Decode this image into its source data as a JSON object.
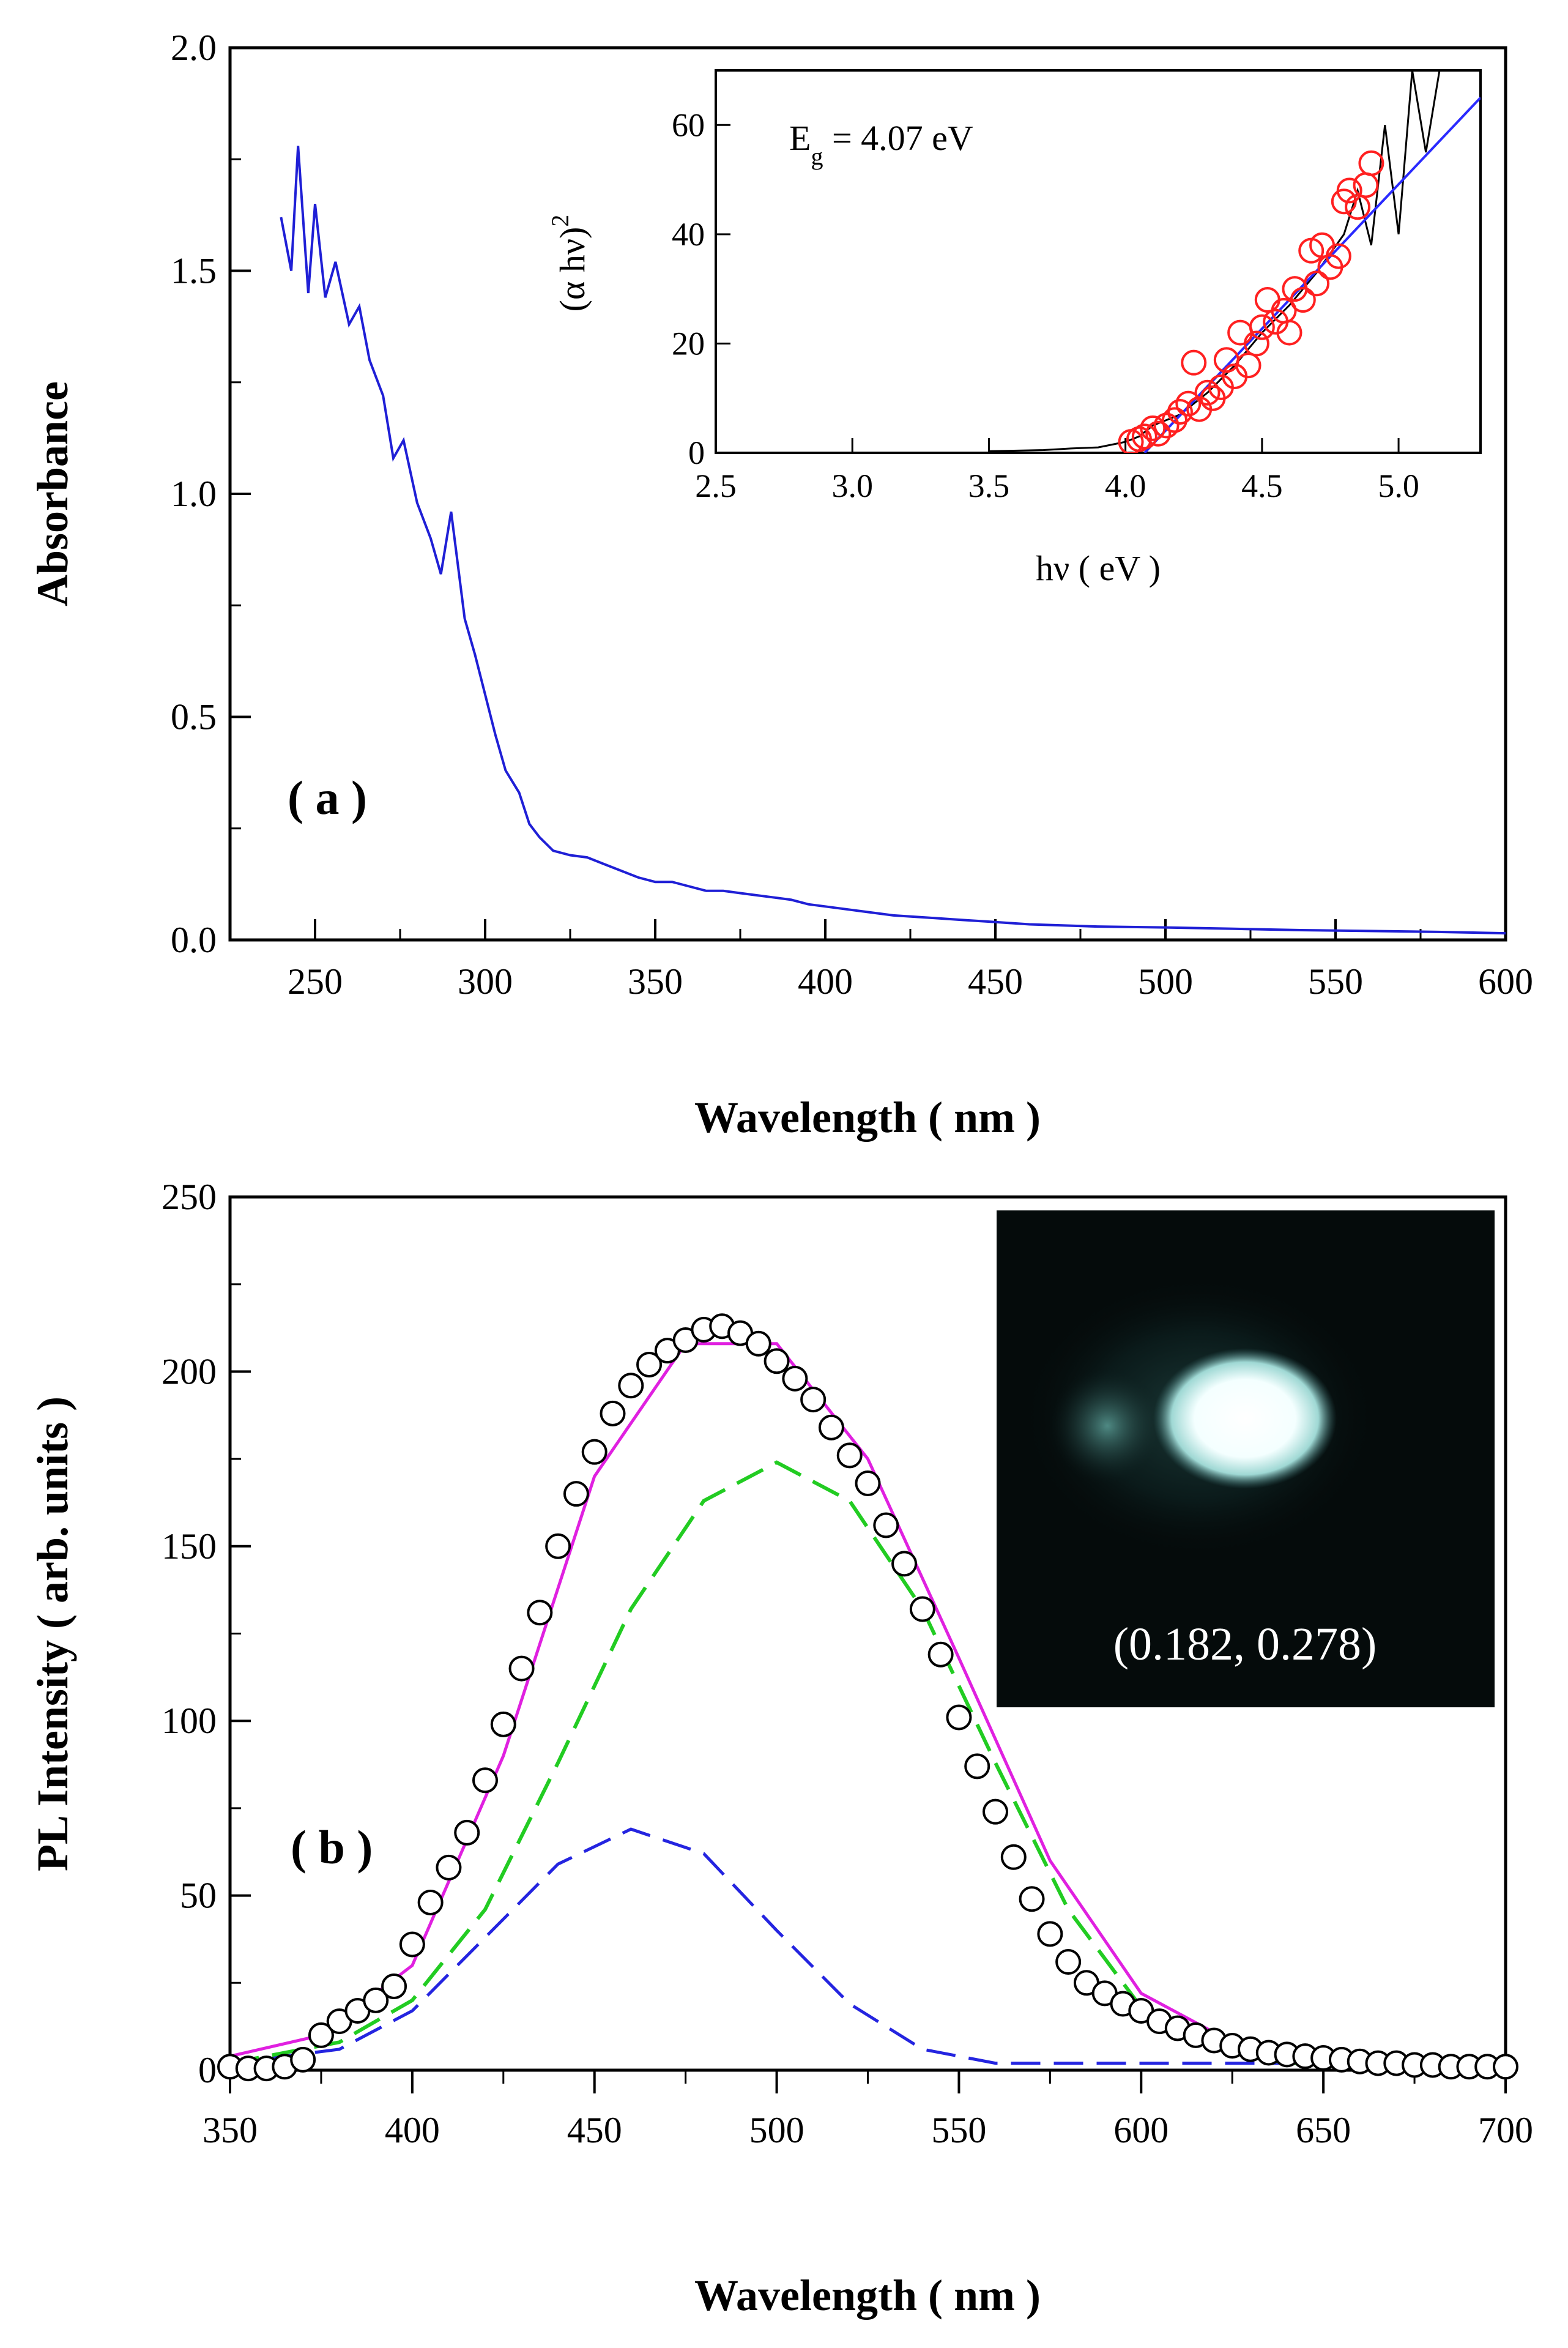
{
  "colors": {
    "absorbance": "#1f1fd6",
    "inset_fit": "#2a2aff",
    "inset_measured": "#000000",
    "inset_points": "#ff2020",
    "pl_fit": "#e020e0",
    "pl_peak1": "#2424e0",
    "pl_peak2": "#22cc22",
    "pl_points": "#000000",
    "photo_bg": "#050b0b"
  },
  "chart_data": [
    {
      "panel_label": "( a )",
      "type": "line",
      "xlabel": "Wavelength ( nm )",
      "ylabel": "Absorbance",
      "xlim": [
        225,
        600
      ],
      "ylim": [
        0,
        2.0
      ],
      "xticks": [
        "250",
        "300",
        "350",
        "400",
        "450",
        "500",
        "550",
        "600"
      ],
      "yticks": [
        "0.0",
        "0.5",
        "1.0",
        "1.5",
        "2.0"
      ],
      "series": [
        {
          "x": [
            240,
            243,
            245,
            248,
            250,
            253,
            256,
            260,
            263,
            266,
            270,
            273,
            276,
            280,
            284,
            287,
            290,
            294,
            297,
            300,
            303,
            306,
            310,
            313,
            316,
            320,
            325,
            330,
            335,
            340,
            345,
            350,
            355,
            360,
            365,
            370,
            375,
            380,
            385,
            390,
            395,
            400,
            410,
            420,
            430,
            440,
            450,
            460,
            480,
            500,
            520,
            540,
            560,
            580,
            600
          ],
          "y": [
            1.62,
            1.5,
            1.78,
            1.45,
            1.65,
            1.44,
            1.52,
            1.38,
            1.42,
            1.3,
            1.22,
            1.08,
            1.12,
            0.98,
            0.9,
            0.82,
            0.96,
            0.72,
            0.64,
            0.55,
            0.46,
            0.38,
            0.33,
            0.26,
            0.23,
            0.2,
            0.19,
            0.185,
            0.17,
            0.155,
            0.14,
            0.13,
            0.13,
            0.12,
            0.11,
            0.11,
            0.105,
            0.1,
            0.095,
            0.09,
            0.08,
            0.075,
            0.065,
            0.055,
            0.05,
            0.045,
            0.04,
            0.035,
            0.03,
            0.028,
            0.025,
            0.022,
            0.02,
            0.018,
            0.015
          ]
        }
      ],
      "inset": {
        "type": "scatter",
        "annotation_main": "E",
        "annotation_sub": "g",
        "annotation_rest": " = 4.07 eV",
        "xlabel": "hν ( eV )",
        "ylabel_main": "(α hν)",
        "ylabel_sup": "2",
        "xlim": [
          2.5,
          5.3
        ],
        "ylim": [
          0,
          70
        ],
        "xticks": [
          "2.5",
          "3.0",
          "3.5",
          "4.0",
          "4.5",
          "5.0"
        ],
        "yticks": [
          "0",
          "20",
          "40",
          "60"
        ],
        "measured": {
          "x": [
            3.5,
            3.7,
            3.8,
            3.9,
            3.95,
            4.0,
            4.05,
            4.1,
            4.2,
            4.3,
            4.4,
            4.5,
            4.6,
            4.7,
            4.8,
            4.85,
            4.9,
            4.95,
            5.0,
            5.05,
            5.1,
            5.15,
            5.2
          ],
          "y": [
            0.3,
            0.5,
            0.8,
            1.0,
            1.5,
            2.0,
            3.0,
            5.0,
            7.0,
            11.0,
            16.0,
            22.0,
            27.0,
            33.0,
            40.0,
            48.0,
            38.0,
            60.0,
            40.0,
            70.0,
            55.0,
            70.0,
            70.0
          ]
        },
        "points": {
          "x": [
            4.02,
            4.05,
            4.07,
            4.1,
            4.12,
            4.15,
            4.18,
            4.2,
            4.23,
            4.25,
            4.27,
            4.3,
            4.32,
            4.35,
            4.37,
            4.4,
            4.42,
            4.45,
            4.48,
            4.5,
            4.52,
            4.55,
            4.58,
            4.6,
            4.62,
            4.65,
            4.68,
            4.7,
            4.72,
            4.75,
            4.78,
            4.8,
            4.82,
            4.85,
            4.88,
            4.9
          ],
          "y": [
            2.0,
            2.5,
            3.0,
            4.5,
            3.5,
            5.0,
            6.0,
            7.5,
            9.0,
            16.5,
            8.0,
            11.0,
            10.0,
            12.0,
            17.0,
            14.0,
            22.0,
            16.0,
            20.0,
            23.0,
            28.0,
            24.0,
            26.0,
            22.0,
            30.0,
            28.0,
            37.0,
            31.0,
            38.0,
            34.0,
            36.0,
            46.0,
            48.0,
            45.0,
            49.0,
            53.0
          ]
        },
        "fit": {
          "x": [
            4.07,
            5.3
          ],
          "y": [
            0,
            65
          ]
        }
      }
    },
    {
      "panel_label": "( b )",
      "type": "line",
      "xlabel": "Wavelength ( nm )",
      "ylabel": "PL Intensity ( arb. units )",
      "xlim": [
        350,
        700
      ],
      "ylim": [
        0,
        250
      ],
      "xticks": [
        "350",
        "400",
        "450",
        "500",
        "550",
        "600",
        "650",
        "700"
      ],
      "yticks": [
        "0",
        "50",
        "100",
        "150",
        "200",
        "250"
      ],
      "photo_label": "(0.182, 0.278)",
      "series": [
        {
          "x": [
            350,
            355,
            360,
            365,
            370,
            375,
            380,
            385,
            390,
            395,
            400,
            405,
            410,
            415,
            420,
            425,
            430,
            435,
            440,
            445,
            450,
            455,
            460,
            465,
            470,
            475,
            480,
            485,
            490,
            495,
            500,
            505,
            510,
            515,
            520,
            525,
            530,
            535,
            540,
            545,
            550,
            555,
            560,
            565,
            570,
            575,
            580,
            585,
            590,
            595,
            600,
            605,
            610,
            615,
            620,
            625,
            630,
            635,
            640,
            645,
            650,
            655,
            660,
            665,
            670,
            675,
            680,
            685,
            690,
            695,
            700
          ],
          "y": [
            1,
            0.5,
            0.5,
            1,
            3,
            10,
            14,
            17,
            20,
            24,
            36,
            48,
            58,
            68,
            83,
            99,
            115,
            131,
            150,
            165,
            177,
            188,
            196,
            202,
            206,
            209,
            212,
            213,
            211,
            208,
            203,
            198,
            192,
            184,
            176,
            168,
            156,
            145,
            132,
            119,
            101,
            87,
            74,
            61,
            49,
            39,
            31,
            25,
            22,
            19,
            17,
            14,
            12,
            10,
            8.5,
            7,
            6,
            5,
            4.5,
            4,
            3.5,
            3,
            2.5,
            2,
            2,
            1.5,
            1.5,
            1,
            1,
            1,
            1
          ]
        },
        {
          "x": [
            350,
            375,
            400,
            425,
            450,
            475,
            500,
            525,
            550,
            575,
            600,
            625,
            650,
            675,
            700
          ],
          "y": [
            4,
            10,
            30,
            90,
            170,
            208,
            208,
            175,
            118,
            60,
            22,
            8,
            4,
            3,
            3
          ]
        },
        {
          "x": [
            350,
            380,
            400,
            420,
            440,
            460,
            480,
            500,
            520,
            540,
            560,
            580,
            600,
            620,
            640,
            660,
            700
          ],
          "y": [
            2,
            8,
            20,
            46,
            88,
            132,
            163,
            174,
            163,
            132,
            88,
            46,
            18,
            6,
            2,
            2,
            2
          ]
        },
        {
          "x": [
            350,
            380,
            400,
            420,
            440,
            460,
            480,
            500,
            520,
            540,
            560,
            580,
            700
          ],
          "y": [
            2,
            6,
            17,
            38,
            59,
            69,
            62,
            40,
            19,
            6,
            2,
            2,
            2
          ]
        }
      ]
    }
  ]
}
